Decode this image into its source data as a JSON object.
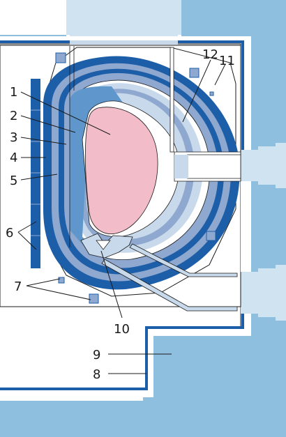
{
  "colors": {
    "building": "#8fbfdf",
    "port_light": "#cfe3f1",
    "vessel_dark": "#1d5ea8",
    "blanket_mid": "#8fa8cf",
    "shield_light": "#c7d9ea",
    "divertor": "#5f97cc",
    "plasma": "#f2bcc9",
    "coil": "#2f6aa8",
    "line": "#1a1a1a",
    "white": "#ffffff"
  },
  "callouts": [
    {
      "id": "1",
      "label": "1"
    },
    {
      "id": "2",
      "label": "2"
    },
    {
      "id": "3",
      "label": "3"
    },
    {
      "id": "4",
      "label": "4"
    },
    {
      "id": "5",
      "label": "5"
    },
    {
      "id": "6",
      "label": "6"
    },
    {
      "id": "7",
      "label": "7"
    },
    {
      "id": "8",
      "label": "8"
    },
    {
      "id": "9",
      "label": "9"
    },
    {
      "id": "10",
      "label": "10"
    },
    {
      "id": "11",
      "label": "11"
    },
    {
      "id": "12",
      "label": "12"
    }
  ]
}
